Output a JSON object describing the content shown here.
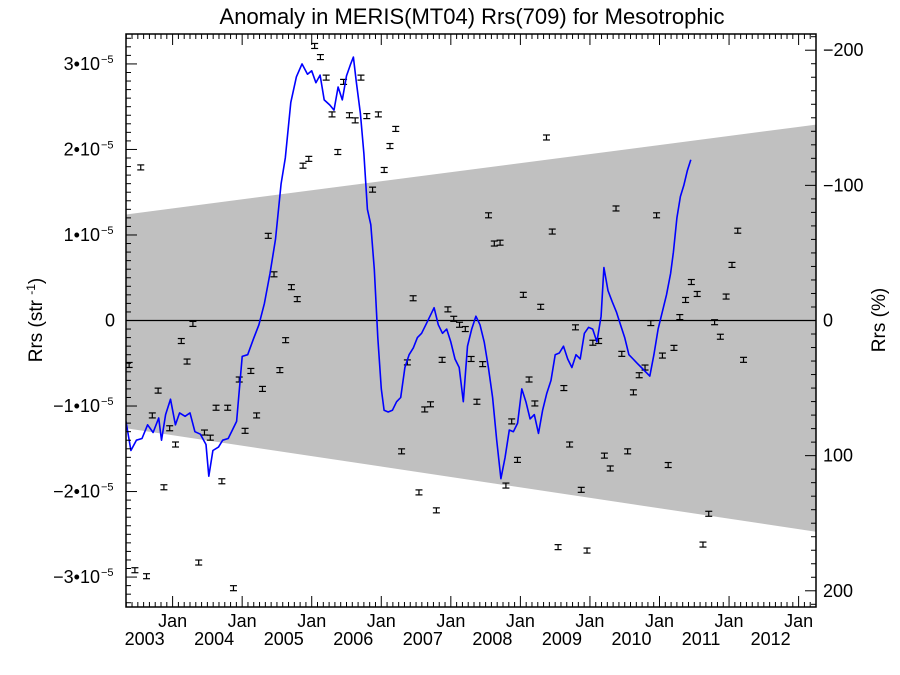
{
  "chart_data": {
    "type": "line",
    "title": "Anomaly in MERIS(MT04) Rrs(709) for Mesotrophic",
    "ylabel": "Rrs (str",
    "ylabel_sup": "-1",
    "ylabel_close": ")",
    "y2label": "Rrs (%)",
    "xlabel": "",
    "xlim": [
      2002.33,
      2012.25
    ],
    "ylim": [
      -3.35e-05,
      3.35e-05
    ],
    "y2lim": [
      212,
      -212
    ],
    "x_ticks": [
      {
        "value": 2003.0,
        "month": "Jan",
        "year": "2003"
      },
      {
        "value": 2004.0,
        "month": "Jan",
        "year": "2004"
      },
      {
        "value": 2005.0,
        "month": "Jan",
        "year": "2005"
      },
      {
        "value": 2006.0,
        "month": "Jan",
        "year": "2006"
      },
      {
        "value": 2007.0,
        "month": "Jan",
        "year": "2007"
      },
      {
        "value": 2008.0,
        "month": "Jan",
        "year": "2008"
      },
      {
        "value": 2009.0,
        "month": "Jan",
        "year": "2009"
      },
      {
        "value": 2010.0,
        "month": "Jan",
        "year": "2010"
      },
      {
        "value": 2011.0,
        "month": "Jan",
        "year": "2011"
      },
      {
        "value": 2012.0,
        "month": "Jan",
        "year": "2012"
      }
    ],
    "y_ticks": [
      {
        "value": 3e-05,
        "mant": "3•10",
        "exp": "−5"
      },
      {
        "value": 2e-05,
        "mant": "2•10",
        "exp": "−5"
      },
      {
        "value": 1e-05,
        "mant": "1•10",
        "exp": "−5"
      },
      {
        "value": 0,
        "mant": "0",
        "exp": ""
      },
      {
        "value": -1e-05,
        "mant": "−1•10",
        "exp": "−5"
      },
      {
        "value": -2e-05,
        "mant": "−2•10",
        "exp": "−5"
      },
      {
        "value": -3e-05,
        "mant": "−3•10",
        "exp": "−5"
      }
    ],
    "y2_ticks": [
      {
        "value": -200,
        "label": "−200"
      },
      {
        "value": -100,
        "label": "−100"
      },
      {
        "value": 0,
        "label": "0"
      },
      {
        "value": 100,
        "label": "100"
      },
      {
        "value": 200,
        "label": "200"
      }
    ],
    "band": {
      "color": "#c0c0c0",
      "upper": [
        [
          2002.33,
          1.24e-05
        ],
        [
          2012.25,
          2.29e-05
        ]
      ],
      "lower": [
        [
          2002.33,
          -1.26e-05
        ],
        [
          2012.25,
          -2.47e-05
        ]
      ]
    },
    "zero_line": 0,
    "series": [
      {
        "kind": "points_with_errorbars",
        "color": "#000000",
        "points": [
          [
            2002.375,
            -5.2e-06
          ],
          [
            2002.458,
            -2.92e-05
          ],
          [
            2002.542,
            1.79e-05
          ],
          [
            2002.625,
            -2.99e-05
          ],
          [
            2002.708,
            -1.11e-05
          ],
          [
            2002.792,
            -8.2e-06
          ],
          [
            2002.875,
            -1.95e-05
          ],
          [
            2002.958,
            -1.26e-05
          ],
          [
            2003.042,
            -1.45e-05
          ],
          [
            2003.125,
            -2.4e-06
          ],
          [
            2003.208,
            -4.8e-06
          ],
          [
            2003.292,
            -4e-07
          ],
          [
            2003.375,
            -2.83e-05
          ],
          [
            2003.458,
            -1.31e-05
          ],
          [
            2003.542,
            -1.37e-05
          ],
          [
            2003.625,
            -1.02e-05
          ],
          [
            2003.708,
            -1.88e-05
          ],
          [
            2003.792,
            -1.02e-05
          ],
          [
            2003.875,
            -3.13e-05
          ],
          [
            2003.958,
            -6.9e-06
          ],
          [
            2004.042,
            -1.29e-05
          ],
          [
            2004.125,
            -5.9e-06
          ],
          [
            2004.208,
            -1.11e-05
          ],
          [
            2004.292,
            -8e-06
          ],
          [
            2004.375,
            9.9e-06
          ],
          [
            2004.458,
            5.4e-06
          ],
          [
            2004.542,
            -5.8e-06
          ],
          [
            2004.625,
            -2.3e-06
          ],
          [
            2004.708,
            3.9e-06
          ],
          [
            2004.792,
            2.5e-06
          ],
          [
            2004.875,
            1.81e-05
          ],
          [
            2004.958,
            1.89e-05
          ],
          [
            2005.042,
            3.21e-05
          ],
          [
            2005.125,
            3.08e-05
          ],
          [
            2005.208,
            2.84e-05
          ],
          [
            2005.292,
            2.41e-05
          ],
          [
            2005.375,
            1.97e-05
          ],
          [
            2005.458,
            2.79e-05
          ],
          [
            2005.542,
            2.4e-05
          ],
          [
            2005.625,
            2.34e-05
          ],
          [
            2005.708,
            2.84e-05
          ],
          [
            2005.792,
            2.39e-05
          ],
          [
            2005.875,
            1.53e-05
          ],
          [
            2005.958,
            2.41e-05
          ],
          [
            2006.042,
            1.76e-05
          ],
          [
            2006.125,
            2.04e-05
          ],
          [
            2006.208,
            2.24e-05
          ],
          [
            2006.292,
            -1.53e-05
          ],
          [
            2006.375,
            -4.9e-06
          ],
          [
            2006.458,
            2.6e-06
          ],
          [
            2006.542,
            -2.01e-05
          ],
          [
            2006.625,
            -1.04e-05
          ],
          [
            2006.708,
            -9.8e-06
          ],
          [
            2006.792,
            -2.22e-05
          ],
          [
            2006.875,
            -4.6e-06
          ],
          [
            2006.958,
            1.3e-06
          ],
          [
            2007.042,
            2e-07
          ],
          [
            2007.125,
            -5e-07
          ],
          [
            2007.208,
            -1e-06
          ],
          [
            2007.292,
            -4.5e-06
          ],
          [
            2007.375,
            -9.5e-06
          ],
          [
            2007.458,
            -5.1e-06
          ],
          [
            2007.542,
            1.23e-05
          ],
          [
            2007.625,
            9e-06
          ],
          [
            2007.708,
            9.1e-06
          ],
          [
            2007.792,
            -1.93e-05
          ],
          [
            2007.875,
            -1.18e-05
          ],
          [
            2007.958,
            -1.63e-05
          ],
          [
            2008.042,
            3e-06
          ],
          [
            2008.125,
            -6.9e-06
          ],
          [
            2008.208,
            -9.7e-06
          ],
          [
            2008.292,
            1.6e-06
          ],
          [
            2008.375,
            2.14e-05
          ],
          [
            2008.458,
            1.04e-05
          ],
          [
            2008.542,
            -2.65e-05
          ],
          [
            2008.625,
            -7.9e-06
          ],
          [
            2008.708,
            -1.45e-05
          ],
          [
            2008.792,
            -8e-07
          ],
          [
            2008.875,
            -1.98e-05
          ],
          [
            2008.958,
            -2.69e-05
          ],
          [
            2009.042,
            -2.6e-06
          ],
          [
            2009.125,
            -2.4e-06
          ],
          [
            2009.208,
            -1.58e-05
          ],
          [
            2009.292,
            -1.73e-05
          ],
          [
            2009.375,
            1.31e-05
          ],
          [
            2009.458,
            -3.9e-06
          ],
          [
            2009.542,
            -1.53e-05
          ],
          [
            2009.625,
            -8.4e-06
          ],
          [
            2009.708,
            -6.4e-06
          ],
          [
            2009.792,
            -5.5e-06
          ],
          [
            2009.875,
            -3e-07
          ],
          [
            2009.958,
            1.23e-05
          ],
          [
            2010.042,
            -4.1e-06
          ],
          [
            2010.125,
            -1.69e-05
          ],
          [
            2010.208,
            -3.2e-06
          ],
          [
            2010.292,
            4e-07
          ],
          [
            2010.375,
            2.4e-06
          ],
          [
            2010.458,
            4.5e-06
          ],
          [
            2010.542,
            3.1e-06
          ],
          [
            2010.625,
            -2.62e-05
          ],
          [
            2010.708,
            -2.26e-05
          ],
          [
            2010.792,
            -2e-07
          ],
          [
            2010.875,
            -1.9e-06
          ],
          [
            2010.958,
            2.8e-06
          ],
          [
            2011.042,
            6.5e-06
          ],
          [
            2011.125,
            1.05e-05
          ],
          [
            2011.208,
            -4.6e-06
          ]
        ]
      },
      {
        "kind": "line",
        "color": "#0000ff",
        "points": [
          [
            2002.33,
            -1.18e-05
          ],
          [
            2002.4,
            -1.52e-05
          ],
          [
            2002.48,
            -1.4e-05
          ],
          [
            2002.56,
            -1.38e-05
          ],
          [
            2002.64,
            -1.22e-05
          ],
          [
            2002.72,
            -1.31e-05
          ],
          [
            2002.8,
            -1.14e-05
          ],
          [
            2002.84,
            -1.4e-05
          ],
          [
            2002.9,
            -1.1e-05
          ],
          [
            2002.97,
            -9.2e-06
          ],
          [
            2003.04,
            -1.22e-05
          ],
          [
            2003.1,
            -1.08e-05
          ],
          [
            2003.18,
            -1.12e-05
          ],
          [
            2003.25,
            -1.08e-05
          ],
          [
            2003.32,
            -1.3e-05
          ],
          [
            2003.4,
            -1.33e-05
          ],
          [
            2003.48,
            -1.45e-05
          ],
          [
            2003.52,
            -1.82e-05
          ],
          [
            2003.58,
            -1.52e-05
          ],
          [
            2003.66,
            -1.48e-05
          ],
          [
            2003.72,
            -1.4e-05
          ],
          [
            2003.8,
            -1.38e-05
          ],
          [
            2003.86,
            -1.28e-05
          ],
          [
            2003.92,
            -1.18e-05
          ],
          [
            2004.0,
            -4.2e-06
          ],
          [
            2004.08,
            -4e-06
          ],
          [
            2004.16,
            -2.2e-06
          ],
          [
            2004.24,
            -5e-07
          ],
          [
            2004.32,
            2e-06
          ],
          [
            2004.4,
            5.5e-06
          ],
          [
            2004.48,
            9.5e-06
          ],
          [
            2004.56,
            1.6e-05
          ],
          [
            2004.62,
            1.9e-05
          ],
          [
            2004.7,
            2.55e-05
          ],
          [
            2004.78,
            2.85e-05
          ],
          [
            2004.86,
            3e-05
          ],
          [
            2004.94,
            2.88e-05
          ],
          [
            2005.0,
            2.92e-05
          ],
          [
            2005.06,
            2.78e-05
          ],
          [
            2005.12,
            2.87e-05
          ],
          [
            2005.18,
            2.58e-05
          ],
          [
            2005.26,
            2.52e-05
          ],
          [
            2005.32,
            2.46e-05
          ],
          [
            2005.38,
            2.73e-05
          ],
          [
            2005.44,
            2.58e-05
          ],
          [
            2005.5,
            2.86e-05
          ],
          [
            2005.56,
            3e-05
          ],
          [
            2005.6,
            3.08e-05
          ],
          [
            2005.64,
            2.8e-05
          ],
          [
            2005.7,
            2.42e-05
          ],
          [
            2005.75,
            1.95e-05
          ],
          [
            2005.8,
            1.3e-05
          ],
          [
            2005.85,
            1.12e-05
          ],
          [
            2005.9,
            6e-06
          ],
          [
            2005.95,
            -2e-06
          ],
          [
            2006.0,
            -8e-06
          ],
          [
            2006.04,
            -1.05e-05
          ],
          [
            2006.1,
            -1.07e-05
          ],
          [
            2006.16,
            -1.05e-05
          ],
          [
            2006.22,
            -9.5e-06
          ],
          [
            2006.28,
            -9e-06
          ],
          [
            2006.34,
            -5.5e-06
          ],
          [
            2006.4,
            -4e-06
          ],
          [
            2006.46,
            -3.2e-06
          ],
          [
            2006.52,
            -2e-06
          ],
          [
            2006.58,
            -1.5e-06
          ],
          [
            2006.64,
            -5e-07
          ],
          [
            2006.7,
            5e-07
          ],
          [
            2006.76,
            1.5e-06
          ],
          [
            2006.82,
            -5e-07
          ],
          [
            2006.88,
            -1.5e-06
          ],
          [
            2006.94,
            -1e-06
          ],
          [
            2007.0,
            -2.5e-06
          ],
          [
            2007.06,
            -4.5e-06
          ],
          [
            2007.12,
            -5.5e-06
          ],
          [
            2007.18,
            -9.5e-06
          ],
          [
            2007.24,
            -3e-06
          ],
          [
            2007.3,
            -1e-06
          ],
          [
            2007.36,
            5e-07
          ],
          [
            2007.42,
            -5e-07
          ],
          [
            2007.48,
            -2.5e-06
          ],
          [
            2007.54,
            -5.5e-06
          ],
          [
            2007.6,
            -9e-06
          ],
          [
            2007.66,
            -1.4e-05
          ],
          [
            2007.72,
            -1.85e-05
          ],
          [
            2007.78,
            -1.6e-05
          ],
          [
            2007.84,
            -1.28e-05
          ],
          [
            2007.9,
            -1.3e-05
          ],
          [
            2007.96,
            -1.2e-05
          ],
          [
            2008.02,
            -8e-06
          ],
          [
            2008.08,
            -9.5e-06
          ],
          [
            2008.14,
            -1.15e-05
          ],
          [
            2008.2,
            -1.1e-05
          ],
          [
            2008.26,
            -1.32e-05
          ],
          [
            2008.32,
            -1.05e-05
          ],
          [
            2008.38,
            -8.5e-06
          ],
          [
            2008.44,
            -7e-06
          ],
          [
            2008.5,
            -4e-06
          ],
          [
            2008.56,
            -3.8e-06
          ],
          [
            2008.62,
            -3e-06
          ],
          [
            2008.68,
            -4.5e-06
          ],
          [
            2008.74,
            -5.5e-06
          ],
          [
            2008.8,
            -4e-06
          ],
          [
            2008.86,
            -4.5e-06
          ],
          [
            2008.92,
            -1.5e-06
          ],
          [
            2008.98,
            -8e-07
          ],
          [
            2009.04,
            -1e-06
          ],
          [
            2009.1,
            -2.5e-06
          ],
          [
            2009.16,
            5e-07
          ],
          [
            2009.2,
            6.2e-06
          ],
          [
            2009.26,
            3.5e-06
          ],
          [
            2009.32,
            2.2e-06
          ],
          [
            2009.38,
            1e-06
          ],
          [
            2009.44,
            -5e-07
          ],
          [
            2009.5,
            -2e-06
          ],
          [
            2009.56,
            -4e-06
          ],
          [
            2009.62,
            -4.5e-06
          ],
          [
            2009.68,
            -5e-06
          ],
          [
            2009.74,
            -5.5e-06
          ],
          [
            2009.8,
            -6e-06
          ],
          [
            2009.86,
            -6.5e-06
          ],
          [
            2009.92,
            -4e-06
          ],
          [
            2009.98,
            -1e-06
          ],
          [
            2010.04,
            1e-06
          ],
          [
            2010.1,
            3e-06
          ],
          [
            2010.16,
            5.5e-06
          ],
          [
            2010.2,
            8e-06
          ],
          [
            2010.25,
            1.2e-05
          ],
          [
            2010.3,
            1.45e-05
          ],
          [
            2010.35,
            1.58e-05
          ],
          [
            2010.4,
            1.75e-05
          ],
          [
            2010.45,
            1.88e-05
          ]
        ]
      }
    ]
  }
}
